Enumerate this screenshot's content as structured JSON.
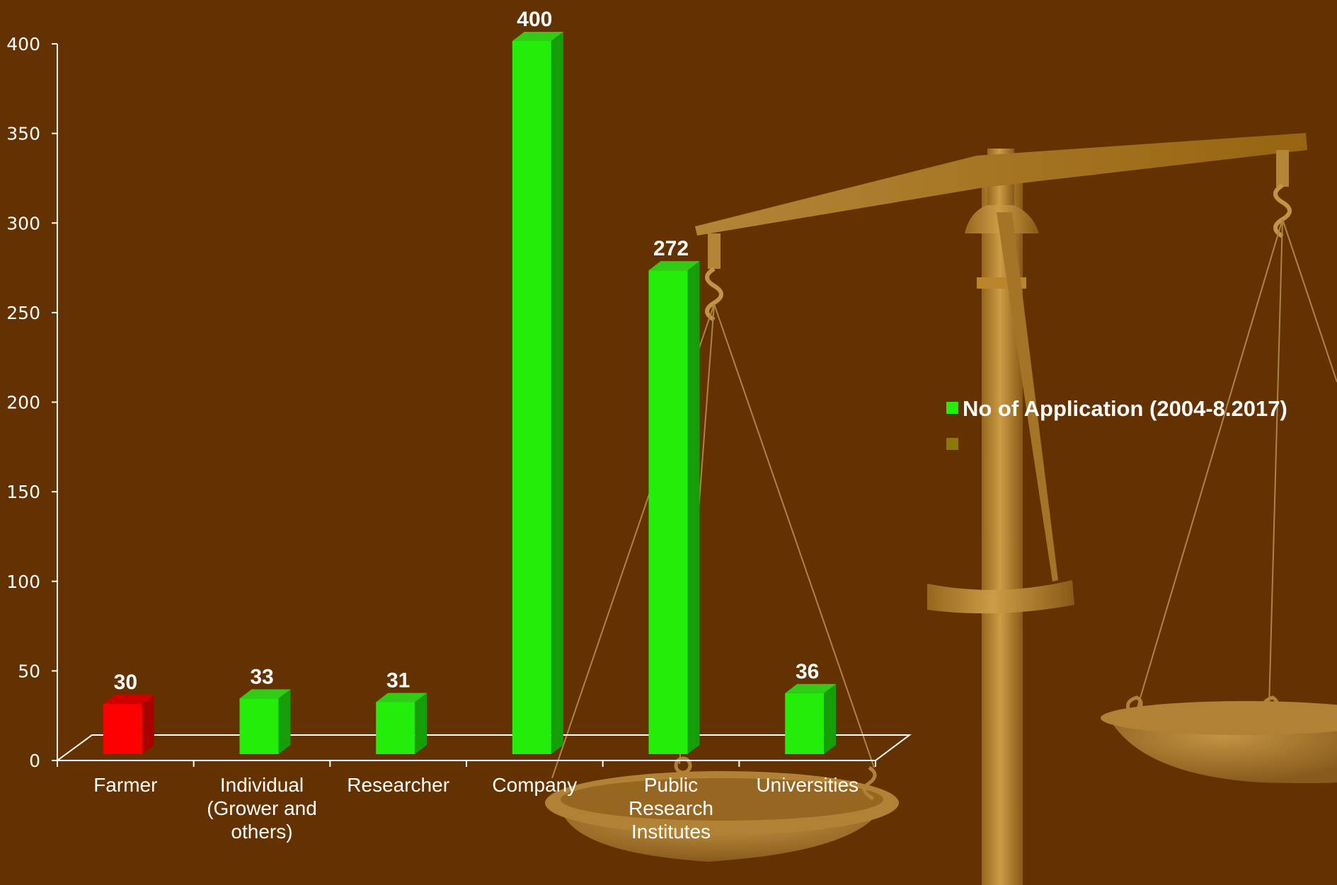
{
  "chart_data": {
    "type": "bar",
    "categories": [
      "Farmer",
      "Individual\n(Grower and\nothers)",
      "Researcher",
      "Company",
      "Public\nResearch\nInstitutes",
      "Universities"
    ],
    "series": [
      {
        "name": "No of Application (2004-8.2017)",
        "values": [
          30,
          33,
          31,
          400,
          272,
          36
        ]
      }
    ],
    "data_labels": [
      "30",
      "33",
      "31",
      "400",
      "272",
      "36"
    ],
    "ylim": [
      0,
      400
    ],
    "yticks": [
      0,
      50,
      100,
      150,
      200,
      250,
      300,
      350,
      400
    ],
    "highlight_index": 0,
    "legend_position": "right",
    "grid": false
  },
  "colors": {
    "background": "#643200",
    "bar_front": "#22ee0a",
    "bar_side": "#169e08",
    "bar_top": "#30cc16",
    "highlight_front": "#ff0000",
    "highlight_side": "#a60000",
    "highlight_top": "#d00000",
    "axis": "#ffffff",
    "legend_second_marker": "#8a7a05",
    "scale_brass": "#b07e2c"
  },
  "decoration": {
    "background_image": "balance-scale-icon"
  }
}
